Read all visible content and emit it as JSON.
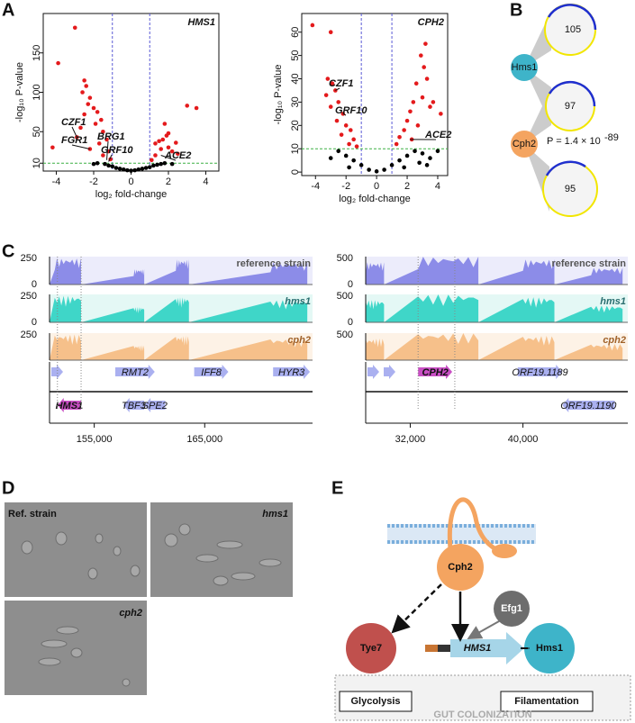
{
  "panel_labels": [
    "A",
    "B",
    "C",
    "D",
    "E"
  ],
  "chart_data": [
    {
      "type": "scatter",
      "title": "HMS1",
      "x_label": "log₂ fold-change",
      "y_label": "-log₁₀ P-value",
      "xlim": [
        -4.7,
        4.7
      ],
      "xticks": [
        -4,
        -2,
        0,
        2,
        4
      ],
      "ylim": [
        0,
        200
      ],
      "yticks": [
        10,
        50,
        100,
        150
      ],
      "vlines": [
        -1,
        1
      ],
      "vline_color": "#5a5ad6",
      "hline": 10,
      "hline_color": "#3cb043",
      "series": [
        {
          "color": "#e41a1c",
          "x": [
            -3.0,
            -3.9,
            -2.5,
            -2.4,
            -2.6,
            -2.2,
            -2.3,
            -2.0,
            -1.8,
            -2.5,
            -1.6,
            -1.9,
            -2.7,
            -1.5,
            -2.9,
            -4.2,
            -1.3,
            -1.7,
            -2.2,
            -1.2,
            -1.5,
            -1.1,
            1.3,
            1.7,
            1.9,
            2.0,
            1.5,
            1.6,
            2.2,
            1.3,
            2.5,
            3.0,
            3.5,
            1.8,
            2.0,
            1.1,
            2.4
          ],
          "y": [
            182,
            137,
            115,
            108,
            100,
            93,
            85,
            80,
            75,
            72,
            65,
            60,
            55,
            50,
            43,
            30,
            40,
            35,
            28,
            25,
            20,
            15,
            35,
            40,
            45,
            48,
            38,
            28,
            25,
            20,
            22,
            83,
            80,
            60,
            30,
            14,
            36
          ]
        },
        {
          "color": "#000000",
          "x": [
            -1.4,
            -1.2,
            -1.0,
            -0.8,
            -0.6,
            -0.4,
            -0.2,
            0,
            0.2,
            0.4,
            0.6,
            0.8,
            1.0,
            1.2,
            1.4,
            1.6,
            1.8,
            2.2,
            -1.8,
            -2.0
          ],
          "y": [
            9,
            7,
            6,
            4,
            3,
            2,
            1,
            0.5,
            1,
            2,
            3,
            4,
            5,
            7,
            8,
            9,
            10,
            9,
            10,
            9
          ]
        }
      ],
      "annotations": [
        "CZF1",
        "FGR1",
        "BRG1",
        "GRF10",
        "ACE2"
      ]
    },
    {
      "type": "scatter",
      "title": "CPH2",
      "x_label": "log₂ fold-change",
      "y_label": "-log₁₀ P-value",
      "xlim": [
        -4.9,
        4.65
      ],
      "xticks": [
        -4,
        -2,
        0,
        2,
        4
      ],
      "ylim": [
        -1.5,
        68
      ],
      "yticks": [
        0,
        10,
        20,
        30,
        40,
        50,
        60
      ],
      "vlines": [
        -1,
        1
      ],
      "vline_color": "#5a5ad6",
      "hline": 10,
      "hline_color": "#3cb043",
      "series": [
        {
          "color": "#e41a1c",
          "x": [
            -4.2,
            -3.0,
            -3.2,
            -2.9,
            -2.7,
            -3.3,
            -2.5,
            -3.0,
            -2.2,
            -2.6,
            -2.0,
            -1.7,
            -2.3,
            -1.5,
            -1.8,
            -1.3,
            2.9,
            3.1,
            3.3,
            2.6,
            3.0,
            2.4,
            3.5,
            2.2,
            4.2,
            2.0,
            2.7,
            1.8,
            1.5,
            2.3,
            1.3,
            3.7,
            3.2
          ],
          "y": [
            63,
            60,
            40,
            38,
            35,
            33,
            30,
            28,
            25,
            22,
            20,
            18,
            16,
            14,
            12,
            11,
            50,
            45,
            40,
            38,
            32,
            30,
            28,
            26,
            25,
            22,
            20,
            18,
            15,
            14,
            12,
            30,
            55
          ]
        },
        {
          "color": "#000000",
          "x": [
            -2.5,
            -2.0,
            -1.5,
            -1.0,
            -0.5,
            0,
            0.5,
            1.0,
            1.5,
            2.0,
            2.5,
            3.0,
            3.5,
            2.8,
            -3.0,
            1.8,
            -1.8,
            4.0,
            3.3
          ],
          "y": [
            9,
            7,
            5,
            3,
            1,
            0.3,
            1,
            3,
            5,
            7,
            9,
            8,
            6,
            4,
            6,
            2,
            2,
            9,
            3
          ]
        }
      ],
      "annotations": [
        "CZF1",
        "GRF10",
        "ACE2"
      ]
    }
  ],
  "overlap": {
    "nodes": [
      "Hms1",
      "Cph2"
    ],
    "circle_values": [
      105,
      97,
      95
    ],
    "p_text": "P = 1.4 × 10",
    "p_exponent": "-89"
  },
  "genome_tracks": [
    {
      "track_labels": [
        "reference strain",
        "hms1",
        "cph2"
      ],
      "y_tick_labels": [
        [
          "250",
          "0"
        ],
        [
          "250",
          "0"
        ],
        [
          "250"
        ]
      ],
      "genes_top": [
        "RMT2",
        "IFF8",
        "HYR3"
      ],
      "genes_bottom": [
        "HMS1",
        "TBF3",
        "SPE2"
      ],
      "x_tick_labels": [
        "155,000",
        "165,000"
      ]
    },
    {
      "track_labels": [
        "reference strain",
        "hms1",
        "cph2"
      ],
      "y_tick_labels": [
        [
          "500",
          "0"
        ],
        [
          "500",
          "0"
        ],
        [
          "500"
        ]
      ],
      "genes_top": [
        "CPH2",
        "ORF19.1189"
      ],
      "genes_bottom": [
        "ORF19.1190"
      ],
      "x_tick_labels": [
        "32,000",
        "40,000"
      ]
    }
  ],
  "micrograph_labels": [
    "Ref. strain",
    "hms1",
    "cph2"
  ],
  "model": {
    "cph2": "Cph2",
    "efg1": "Efg1",
    "tye7": "Tye7",
    "hms1_protein": "Hms1",
    "hms1_gene": "HMS1",
    "glycolysis": "Glycolysis",
    "filamentation": "Filamentation",
    "context": "GUT COLONIZATION"
  }
}
